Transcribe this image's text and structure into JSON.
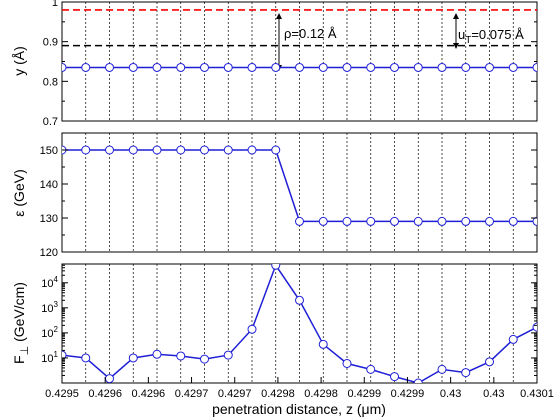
{
  "chart_data": [
    {
      "type": "line",
      "ylabel": "y (Å)",
      "xlim": [
        0.4295,
        0.4301
      ],
      "ylim": [
        0.7,
        1.0
      ],
      "yticks": [
        "0.7",
        "0.8",
        "0.9",
        "1"
      ],
      "x": [
        0.4295,
        0.42953,
        0.42956,
        0.42959,
        0.42962,
        0.42965,
        0.42968,
        0.42971,
        0.42974,
        0.42977,
        0.4298,
        0.42983,
        0.42986,
        0.42989,
        0.42992,
        0.42995,
        0.42998,
        0.43001,
        0.43004,
        0.43007,
        0.4301
      ],
      "values": [
        0.835,
        0.835,
        0.835,
        0.835,
        0.835,
        0.835,
        0.835,
        0.835,
        0.835,
        0.835,
        0.835,
        0.835,
        0.835,
        0.835,
        0.835,
        0.835,
        0.835,
        0.835,
        0.835,
        0.835,
        0.835
      ],
      "reference_lines": [
        {
          "y": 0.98,
          "color": "#ff0000",
          "style": "dashed"
        },
        {
          "y": 0.89,
          "color": "#000000",
          "style": "dashed"
        }
      ],
      "annotations": [
        {
          "text_main": "ρ=0.12 Å"
        },
        {
          "text_pre": "u",
          "text_sub": "T",
          "text_post": "=0.075 Å"
        }
      ],
      "grid": "dotted vertical lines at each x"
    },
    {
      "type": "line",
      "ylabel": "ε (GeV)",
      "xlim": [
        0.4295,
        0.4301
      ],
      "ylim": [
        120,
        155
      ],
      "yticks": [
        "120",
        "130",
        "140",
        "150"
      ],
      "x": [
        0.4295,
        0.42953,
        0.42956,
        0.42959,
        0.42962,
        0.42965,
        0.42968,
        0.42971,
        0.42974,
        0.42977,
        0.4298,
        0.42983,
        0.42986,
        0.42989,
        0.42992,
        0.42995,
        0.42998,
        0.43001,
        0.43004,
        0.43007,
        0.4301
      ],
      "values": [
        150,
        150,
        150,
        150,
        150,
        150,
        150,
        150,
        150,
        150,
        129,
        129,
        129,
        129,
        129,
        129,
        129,
        129,
        129,
        129,
        129
      ],
      "grid": "dotted vertical lines at each x"
    },
    {
      "type": "line",
      "ylabel_pre": "F",
      "ylabel_sub": "⊥",
      "ylabel_post": " (GeV/cm)",
      "xlabel": "penetration distance, z (μm)",
      "xlim": [
        0.4295,
        0.4301
      ],
      "ylim_log10": [
        0.0,
        4.75
      ],
      "y_scale": "log",
      "yticks": [
        {
          "base": "10",
          "exp": "1"
        },
        {
          "base": "10",
          "exp": "2"
        },
        {
          "base": "10",
          "exp": "3"
        },
        {
          "base": "10",
          "exp": "4"
        }
      ],
      "xticks": [
        "0.4295",
        "0.4296",
        "0.4296",
        "0.4297",
        "0.4297",
        "0.4298",
        "0.4298",
        "0.4299",
        "0.4299",
        "0.43",
        "0.43",
        "0.4301"
      ],
      "x": [
        0.4295,
        0.42953,
        0.42956,
        0.42959,
        0.42962,
        0.42965,
        0.42968,
        0.42971,
        0.42974,
        0.42977,
        0.4298,
        0.42983,
        0.42986,
        0.42989,
        0.42992,
        0.42995,
        0.42998,
        0.43001,
        0.43004,
        0.43007,
        0.4301
      ],
      "values": [
        13,
        10,
        1.5,
        10,
        14,
        12,
        9,
        13,
        140,
        50000,
        2000,
        35,
        6,
        3.5,
        1.8,
        1.0,
        3.5,
        2.6,
        7,
        55,
        170
      ],
      "grid": "dotted vertical lines at each x"
    }
  ],
  "colors": {
    "series": "#1f1fd6",
    "marker_fill": "#ffffff",
    "red_ref": "#ff0000",
    "black_ref": "#000000"
  }
}
